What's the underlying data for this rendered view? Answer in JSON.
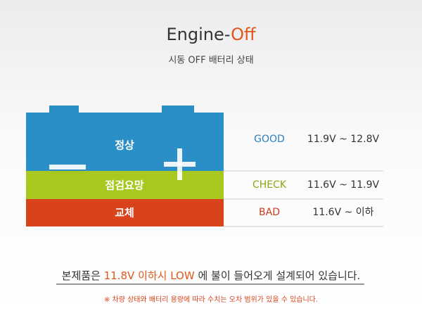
{
  "header": {
    "title_main": "Engine-",
    "title_accent": "Off",
    "subtitle": "시동 OFF 배터리 상태"
  },
  "battery": {
    "bands": [
      "정상",
      "점검요망",
      "교체"
    ]
  },
  "rows": [
    {
      "status": "GOOD",
      "range": "11.9V ~ 12.8V"
    },
    {
      "status": "CHECK",
      "range": "11.6V ~ 11.9V"
    },
    {
      "status": "BAD",
      "range": "11.6V ~ 이하"
    }
  ],
  "note": {
    "before": "본제품은 ",
    "highlight": "11.8V 이하시 LOW",
    "after": " 에 불이 들어오게 설계되어 있습니다."
  },
  "footnote": "※ 차량 상태와 배터리 용량에 따라 수치는 오차 범위가 있을 수 있습니다."
}
